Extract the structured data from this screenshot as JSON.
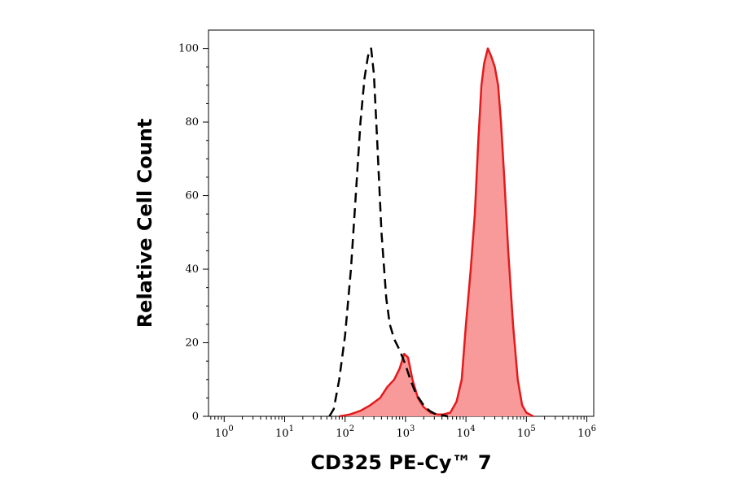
{
  "chart_data": {
    "type": "area",
    "xlabel": "CD325 PE-Cy™ 7",
    "ylabel": "Relative Cell Count",
    "xscale": "log",
    "xlim": [
      0.55,
      1300000
    ],
    "ylim": [
      0,
      105
    ],
    "x_ticks": [
      {
        "base": "10",
        "exp": "0",
        "value": 1
      },
      {
        "base": "10",
        "exp": "1",
        "value": 10
      },
      {
        "base": "10",
        "exp": "2",
        "value": 100
      },
      {
        "base": "10",
        "exp": "3",
        "value": 1000
      },
      {
        "base": "10",
        "exp": "4",
        "value": 10000
      },
      {
        "base": "10",
        "exp": "5",
        "value": 100000
      },
      {
        "base": "10",
        "exp": "6",
        "value": 1000000
      }
    ],
    "y_ticks": [
      0,
      20,
      40,
      60,
      80,
      100
    ],
    "grid": false,
    "legend": "none",
    "series": [
      {
        "style": "dashed-black",
        "color": "#000000",
        "x": [
          55,
          65,
          80,
          100,
          125,
          150,
          180,
          210,
          240,
          270,
          300,
          340,
          400,
          480,
          550,
          650,
          800,
          1000,
          1200,
          1500,
          2000,
          2500,
          3200,
          4000,
          5000
        ],
        "y": [
          0,
          2,
          10,
          22,
          40,
          60,
          80,
          92,
          98,
          100,
          93,
          75,
          50,
          32,
          25,
          21,
          18,
          14,
          10,
          6,
          3,
          1.5,
          0.5,
          0.3,
          0
        ]
      },
      {
        "style": "filled-red",
        "color": "#e31a1c",
        "fill": "#f99a9a",
        "x": [
          80,
          120,
          180,
          260,
          380,
          500,
          650,
          800,
          950,
          1100,
          1300,
          1600,
          2000,
          2600,
          3400,
          4200,
          5500,
          7000,
          8500,
          10000,
          12000,
          14000,
          16000,
          18000,
          20000,
          23000,
          26000,
          30000,
          34000,
          38000,
          43000,
          50000,
          60000,
          72000,
          85000,
          100000,
          130000
        ],
        "y": [
          0,
          0.5,
          1.5,
          3,
          5,
          8,
          10,
          13,
          17,
          16,
          10,
          5,
          2.5,
          1,
          0.5,
          0.5,
          1,
          4,
          10,
          25,
          40,
          55,
          75,
          90,
          96,
          100,
          98,
          95,
          90,
          80,
          65,
          45,
          25,
          10,
          3,
          1,
          0
        ]
      }
    ]
  }
}
